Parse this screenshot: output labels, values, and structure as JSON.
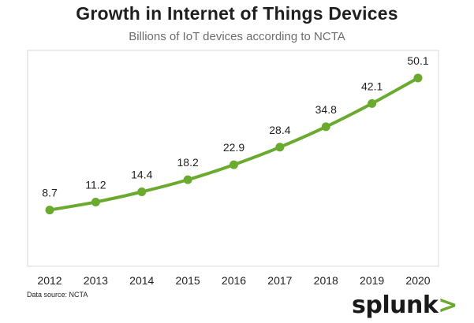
{
  "chart_data": {
    "type": "line",
    "title": "Growth in Internet of Things Devices",
    "subtitle": "Billions of IoT devices according to NCTA",
    "xlabel": "",
    "ylabel": "",
    "categories": [
      "2012",
      "2013",
      "2014",
      "2015",
      "2016",
      "2017",
      "2018",
      "2019",
      "2020"
    ],
    "series": [
      {
        "name": "IoT devices (billions)",
        "values": [
          8.7,
          11.2,
          14.4,
          18.2,
          22.9,
          28.4,
          34.8,
          42.1,
          50.1
        ]
      }
    ],
    "data_labels": [
      "8.7",
      "11.2",
      "14.4",
      "18.2",
      "22.9",
      "28.4",
      "34.8",
      "42.1",
      "50.1"
    ],
    "ylim": [
      -4,
      57
    ],
    "grid": false,
    "legend": "none",
    "colors": {
      "line": "#6aaa2f",
      "axis_box": "#d9d9d9"
    }
  },
  "footer": {
    "source": "Data source: NCTA",
    "brand": "splunk",
    "brand_mark": ">",
    "brand_mark_color": "#6aaa2f"
  }
}
